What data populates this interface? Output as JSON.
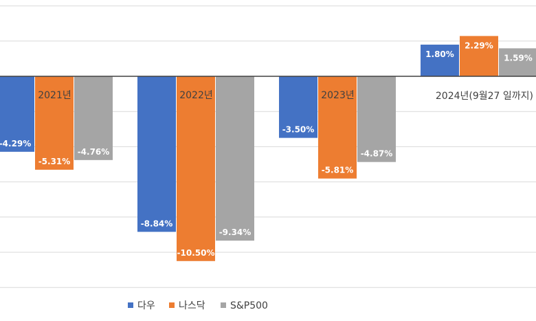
{
  "chart_data": {
    "type": "bar",
    "categories": [
      "2021년",
      "2022년",
      "2023년",
      "2024년(9월27 일까지)"
    ],
    "series": [
      {
        "name": "다우",
        "color": "#4472c4",
        "values": [
          -4.29,
          -8.84,
          -3.5,
          1.8
        ],
        "labels": [
          "-4.29%",
          "-8.84%",
          "-3.50%",
          "1.80%"
        ]
      },
      {
        "name": "나스닥",
        "color": "#ed7d31",
        "values": [
          -5.31,
          -10.5,
          -5.81,
          2.29
        ],
        "labels": [
          "-5.31%",
          "-10.50%",
          "-5.81%",
          "2.29%"
        ]
      },
      {
        "name": "S&P500",
        "color": "#a5a5a5",
        "values": [
          -4.76,
          -9.34,
          -4.87,
          1.59
        ],
        "labels": [
          "-4.76%",
          "-9.34%",
          "-4.87%",
          "1.59%"
        ]
      }
    ],
    "grid": true,
    "legend": "bottom"
  }
}
